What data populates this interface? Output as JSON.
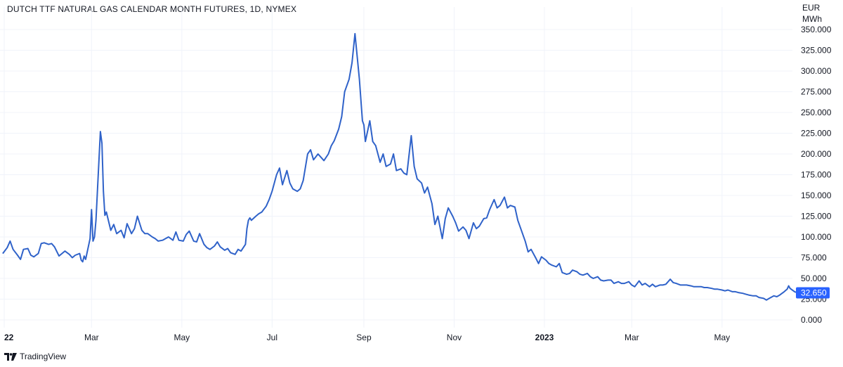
{
  "title": "DUTCH TTF NATURAL GAS CALENDAR MONTH FUTURES, 1D, NYMEX",
  "unit_line1": "EUR",
  "unit_line2": "MWh",
  "brand": "TradingView",
  "colors": {
    "line": "#2f62c9",
    "grid": "#f0f3fa",
    "label_bg": "#2962ff"
  },
  "chart_data": {
    "type": "line",
    "y_ticks": [
      "0.000",
      "25.000",
      "50.000",
      "75.000",
      "100.000",
      "125.000",
      "150.000",
      "175.000",
      "200.000",
      "225.000",
      "250.000",
      "275.000",
      "300.000",
      "325.000",
      "350.000"
    ],
    "x_ticks": [
      {
        "label": "22",
        "x": "2022-01-01",
        "bold": true
      },
      {
        "label": "Mar",
        "x": "2022-03-01",
        "bold": false
      },
      {
        "label": "May",
        "x": "2022-05-01",
        "bold": false
      },
      {
        "label": "Jul",
        "x": "2022-07-01",
        "bold": false
      },
      {
        "label": "Sep",
        "x": "2022-09-01",
        "bold": false
      },
      {
        "label": "Nov",
        "x": "2022-11-01",
        "bold": false
      },
      {
        "label": "2023",
        "x": "2023-01-01",
        "bold": true
      },
      {
        "label": "Mar",
        "x": "2023-03-01",
        "bold": false
      },
      {
        "label": "May",
        "x": "2023-05-01",
        "bold": false
      }
    ],
    "ylim": [
      0,
      350
    ],
    "last_value_label": "32.650",
    "series": [
      {
        "points": [
          [
            "2021-12-31",
            80
          ],
          [
            "2022-01-03",
            87
          ],
          [
            "2022-01-05",
            95
          ],
          [
            "2022-01-07",
            85
          ],
          [
            "2022-01-10",
            78
          ],
          [
            "2022-01-12",
            73
          ],
          [
            "2022-01-14",
            85
          ],
          [
            "2022-01-17",
            86
          ],
          [
            "2022-01-19",
            78
          ],
          [
            "2022-01-21",
            76
          ],
          [
            "2022-01-24",
            80
          ],
          [
            "2022-01-26",
            92
          ],
          [
            "2022-01-28",
            93
          ],
          [
            "2022-01-31",
            91
          ],
          [
            "2022-02-02",
            92
          ],
          [
            "2022-02-04",
            88
          ],
          [
            "2022-02-07",
            77
          ],
          [
            "2022-02-09",
            80
          ],
          [
            "2022-02-11",
            83
          ],
          [
            "2022-02-14",
            79
          ],
          [
            "2022-02-16",
            75
          ],
          [
            "2022-02-18",
            78
          ],
          [
            "2022-02-21",
            80
          ],
          [
            "2022-02-22",
            72
          ],
          [
            "2022-02-23",
            70
          ],
          [
            "2022-02-24",
            77
          ],
          [
            "2022-02-25",
            73
          ],
          [
            "2022-02-28",
            98
          ],
          [
            "2022-03-01",
            133
          ],
          [
            "2022-03-02",
            95
          ],
          [
            "2022-03-03",
            100
          ],
          [
            "2022-03-04",
            120
          ],
          [
            "2022-03-07",
            227
          ],
          [
            "2022-03-08",
            213
          ],
          [
            "2022-03-09",
            155
          ],
          [
            "2022-03-10",
            126
          ],
          [
            "2022-03-11",
            130
          ],
          [
            "2022-03-14",
            108
          ],
          [
            "2022-03-16",
            115
          ],
          [
            "2022-03-18",
            104
          ],
          [
            "2022-03-21",
            108
          ],
          [
            "2022-03-23",
            99
          ],
          [
            "2022-03-25",
            116
          ],
          [
            "2022-03-28",
            104
          ],
          [
            "2022-03-30",
            110
          ],
          [
            "2022-04-01",
            125
          ],
          [
            "2022-04-04",
            108
          ],
          [
            "2022-04-06",
            104
          ],
          [
            "2022-04-08",
            104
          ],
          [
            "2022-04-11",
            100
          ],
          [
            "2022-04-13",
            98
          ],
          [
            "2022-04-15",
            95
          ],
          [
            "2022-04-18",
            96
          ],
          [
            "2022-04-20",
            98
          ],
          [
            "2022-04-22",
            100
          ],
          [
            "2022-04-25",
            96
          ],
          [
            "2022-04-27",
            106
          ],
          [
            "2022-04-29",
            96
          ],
          [
            "2022-05-02",
            95
          ],
          [
            "2022-05-04",
            103
          ],
          [
            "2022-05-06",
            107
          ],
          [
            "2022-05-09",
            95
          ],
          [
            "2022-05-11",
            94
          ],
          [
            "2022-05-13",
            104
          ],
          [
            "2022-05-16",
            91
          ],
          [
            "2022-05-18",
            87
          ],
          [
            "2022-05-20",
            85
          ],
          [
            "2022-05-23",
            89
          ],
          [
            "2022-05-25",
            94
          ],
          [
            "2022-05-27",
            88
          ],
          [
            "2022-05-30",
            84
          ],
          [
            "2022-06-01",
            86
          ],
          [
            "2022-06-03",
            81
          ],
          [
            "2022-06-06",
            79
          ],
          [
            "2022-06-08",
            85
          ],
          [
            "2022-06-10",
            83
          ],
          [
            "2022-06-13",
            91
          ],
          [
            "2022-06-14",
            110
          ],
          [
            "2022-06-15",
            120
          ],
          [
            "2022-06-16",
            123
          ],
          [
            "2022-06-17",
            120
          ],
          [
            "2022-06-20",
            125
          ],
          [
            "2022-06-22",
            128
          ],
          [
            "2022-06-24",
            130
          ],
          [
            "2022-06-27",
            137
          ],
          [
            "2022-06-29",
            145
          ],
          [
            "2022-07-01",
            155
          ],
          [
            "2022-07-04",
            175
          ],
          [
            "2022-07-06",
            183
          ],
          [
            "2022-07-08",
            163
          ],
          [
            "2022-07-11",
            180
          ],
          [
            "2022-07-13",
            165
          ],
          [
            "2022-07-15",
            158
          ],
          [
            "2022-07-18",
            155
          ],
          [
            "2022-07-20",
            158
          ],
          [
            "2022-07-22",
            168
          ],
          [
            "2022-07-25",
            200
          ],
          [
            "2022-07-27",
            205
          ],
          [
            "2022-07-29",
            193
          ],
          [
            "2022-08-01",
            200
          ],
          [
            "2022-08-03",
            196
          ],
          [
            "2022-08-05",
            192
          ],
          [
            "2022-08-08",
            200
          ],
          [
            "2022-08-10",
            210
          ],
          [
            "2022-08-12",
            216
          ],
          [
            "2022-08-15",
            230
          ],
          [
            "2022-08-17",
            245
          ],
          [
            "2022-08-19",
            275
          ],
          [
            "2022-08-22",
            290
          ],
          [
            "2022-08-24",
            310
          ],
          [
            "2022-08-26",
            345
          ],
          [
            "2022-08-29",
            290
          ],
          [
            "2022-08-31",
            240
          ],
          [
            "2022-09-01",
            235
          ],
          [
            "2022-09-02",
            215
          ],
          [
            "2022-09-05",
            240
          ],
          [
            "2022-09-07",
            215
          ],
          [
            "2022-09-09",
            210
          ],
          [
            "2022-09-12",
            190
          ],
          [
            "2022-09-14",
            200
          ],
          [
            "2022-09-16",
            185
          ],
          [
            "2022-09-19",
            188
          ],
          [
            "2022-09-21",
            200
          ],
          [
            "2022-09-23",
            180
          ],
          [
            "2022-09-26",
            182
          ],
          [
            "2022-09-28",
            177
          ],
          [
            "2022-09-30",
            175
          ],
          [
            "2022-10-03",
            222
          ],
          [
            "2022-10-05",
            185
          ],
          [
            "2022-10-07",
            170
          ],
          [
            "2022-10-10",
            165
          ],
          [
            "2022-10-12",
            153
          ],
          [
            "2022-10-14",
            160
          ],
          [
            "2022-10-17",
            140
          ],
          [
            "2022-10-19",
            115
          ],
          [
            "2022-10-21",
            125
          ],
          [
            "2022-10-24",
            98
          ],
          [
            "2022-10-26",
            122
          ],
          [
            "2022-10-28",
            135
          ],
          [
            "2022-10-31",
            125
          ],
          [
            "2022-11-02",
            117
          ],
          [
            "2022-11-04",
            107
          ],
          [
            "2022-11-07",
            112
          ],
          [
            "2022-11-09",
            108
          ],
          [
            "2022-11-11",
            98
          ],
          [
            "2022-11-14",
            117
          ],
          [
            "2022-11-16",
            110
          ],
          [
            "2022-11-18",
            113
          ],
          [
            "2022-11-21",
            122
          ],
          [
            "2022-11-23",
            123
          ],
          [
            "2022-11-25",
            133
          ],
          [
            "2022-11-28",
            145
          ],
          [
            "2022-11-30",
            135
          ],
          [
            "2022-12-02",
            138
          ],
          [
            "2022-12-05",
            148
          ],
          [
            "2022-12-07",
            135
          ],
          [
            "2022-12-09",
            138
          ],
          [
            "2022-12-12",
            136
          ],
          [
            "2022-12-14",
            120
          ],
          [
            "2022-12-16",
            110
          ],
          [
            "2022-12-19",
            95
          ],
          [
            "2022-12-21",
            82
          ],
          [
            "2022-12-23",
            85
          ],
          [
            "2022-12-26",
            75
          ],
          [
            "2022-12-28",
            68
          ],
          [
            "2022-12-30",
            76
          ],
          [
            "2023-01-02",
            72
          ],
          [
            "2023-01-04",
            68
          ],
          [
            "2023-01-06",
            66
          ],
          [
            "2023-01-09",
            64
          ],
          [
            "2023-01-11",
            68
          ],
          [
            "2023-01-13",
            57
          ],
          [
            "2023-01-16",
            55
          ],
          [
            "2023-01-18",
            56
          ],
          [
            "2023-01-20",
            60
          ],
          [
            "2023-01-23",
            58
          ],
          [
            "2023-01-25",
            55
          ],
          [
            "2023-01-27",
            54
          ],
          [
            "2023-01-30",
            56
          ],
          [
            "2023-02-01",
            52
          ],
          [
            "2023-02-03",
            50
          ],
          [
            "2023-02-06",
            52
          ],
          [
            "2023-02-08",
            48
          ],
          [
            "2023-02-10",
            47
          ],
          [
            "2023-02-13",
            48
          ],
          [
            "2023-02-15",
            48
          ],
          [
            "2023-02-17",
            44
          ],
          [
            "2023-02-20",
            46
          ],
          [
            "2023-02-22",
            44
          ],
          [
            "2023-02-24",
            44
          ],
          [
            "2023-02-27",
            46
          ],
          [
            "2023-03-01",
            42
          ],
          [
            "2023-03-03",
            40
          ],
          [
            "2023-03-06",
            47
          ],
          [
            "2023-03-08",
            42
          ],
          [
            "2023-03-10",
            44
          ],
          [
            "2023-03-13",
            40
          ],
          [
            "2023-03-15",
            43
          ],
          [
            "2023-03-17",
            40
          ],
          [
            "2023-03-20",
            42
          ],
          [
            "2023-03-22",
            42
          ],
          [
            "2023-03-24",
            43
          ],
          [
            "2023-03-27",
            49
          ],
          [
            "2023-03-29",
            45
          ],
          [
            "2023-03-31",
            44
          ],
          [
            "2023-04-03",
            42
          ],
          [
            "2023-04-05",
            42
          ],
          [
            "2023-04-07",
            42
          ],
          [
            "2023-04-10",
            41
          ],
          [
            "2023-04-12",
            40
          ],
          [
            "2023-04-14",
            40
          ],
          [
            "2023-04-17",
            40
          ],
          [
            "2023-04-19",
            39
          ],
          [
            "2023-04-21",
            39
          ],
          [
            "2023-04-24",
            38
          ],
          [
            "2023-04-26",
            37
          ],
          [
            "2023-04-28",
            37
          ],
          [
            "2023-05-01",
            36
          ],
          [
            "2023-05-03",
            35
          ],
          [
            "2023-05-05",
            36
          ],
          [
            "2023-05-08",
            34
          ],
          [
            "2023-05-10",
            34
          ],
          [
            "2023-05-12",
            33
          ],
          [
            "2023-05-15",
            32
          ],
          [
            "2023-05-17",
            31
          ],
          [
            "2023-05-19",
            30
          ],
          [
            "2023-05-22",
            29
          ],
          [
            "2023-05-24",
            29
          ],
          [
            "2023-05-26",
            27
          ],
          [
            "2023-05-29",
            26
          ],
          [
            "2023-05-31",
            24
          ],
          [
            "2023-06-02",
            26
          ],
          [
            "2023-06-05",
            29
          ],
          [
            "2023-06-07",
            28
          ],
          [
            "2023-06-09",
            30
          ],
          [
            "2023-06-12",
            34
          ],
          [
            "2023-06-14",
            37
          ],
          [
            "2023-06-15",
            41
          ],
          [
            "2023-06-16",
            38
          ],
          [
            "2023-06-19",
            34
          ],
          [
            "2023-06-21",
            32.65
          ]
        ]
      }
    ]
  }
}
